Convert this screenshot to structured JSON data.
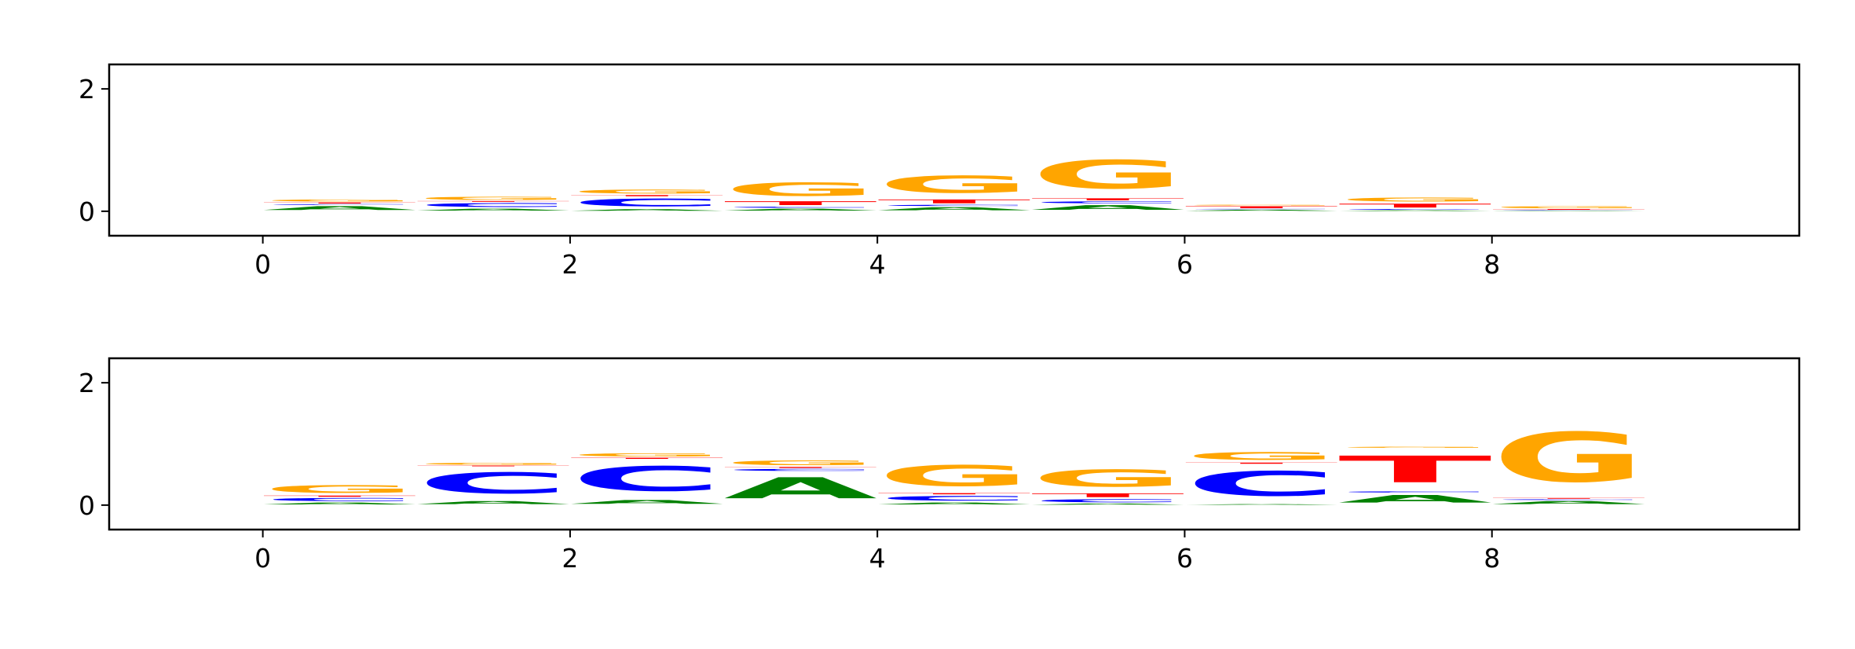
{
  "chart_data": [
    {
      "type": "logo",
      "x": [
        0,
        1,
        2,
        3,
        4,
        5,
        6,
        7,
        8
      ],
      "series": [
        {
          "name": "A",
          "color": "#008000",
          "values": [
            0.1,
            0.05,
            0.04,
            0.05,
            0.08,
            0.12,
            0.03,
            0.02,
            0.01
          ]
        },
        {
          "name": "C",
          "color": "#0000ff",
          "values": [
            0.02,
            0.1,
            0.2,
            0.03,
            0.03,
            0.05,
            0.01,
            0.02,
            0.01
          ]
        },
        {
          "name": "T",
          "color": "#ff0000",
          "values": [
            0.03,
            0.02,
            0.03,
            0.1,
            0.1,
            0.05,
            0.05,
            0.1,
            0.02
          ]
        },
        {
          "name": "G",
          "color": "#ffa500",
          "values": [
            0.05,
            0.08,
            0.1,
            0.35,
            0.45,
            0.75,
            0.02,
            0.1,
            0.05
          ]
        }
      ],
      "xlim": [
        -1,
        10
      ],
      "ylim": [
        -0.4,
        2.4
      ],
      "xticks": [
        0,
        2,
        4,
        6,
        8
      ],
      "yticks": [
        0,
        2
      ]
    },
    {
      "type": "logo",
      "x": [
        0,
        1,
        2,
        3,
        4,
        5,
        6,
        7,
        8
      ],
      "series": [
        {
          "name": "A",
          "color": "#008000",
          "values": [
            0.05,
            0.08,
            0.1,
            0.55,
            0.05,
            0.03,
            0.02,
            0.2,
            0.08
          ]
        },
        {
          "name": "C",
          "color": "#0000ff",
          "values": [
            0.08,
            0.55,
            0.65,
            0.05,
            0.12,
            0.08,
            0.65,
            0.03,
            0.02
          ]
        },
        {
          "name": "T",
          "color": "#ff0000",
          "values": [
            0.03,
            0.02,
            0.03,
            0.03,
            0.03,
            0.1,
            0.03,
            0.7,
            0.02
          ]
        },
        {
          "name": "G",
          "color": "#ffa500",
          "values": [
            0.2,
            0.05,
            0.08,
            0.12,
            0.55,
            0.45,
            0.2,
            0.03,
            1.3
          ]
        }
      ],
      "xlim": [
        -1,
        10
      ],
      "ylim": [
        -0.4,
        2.4
      ],
      "xticks": [
        0,
        2,
        4,
        6,
        8
      ],
      "yticks": [
        0,
        2
      ]
    }
  ]
}
